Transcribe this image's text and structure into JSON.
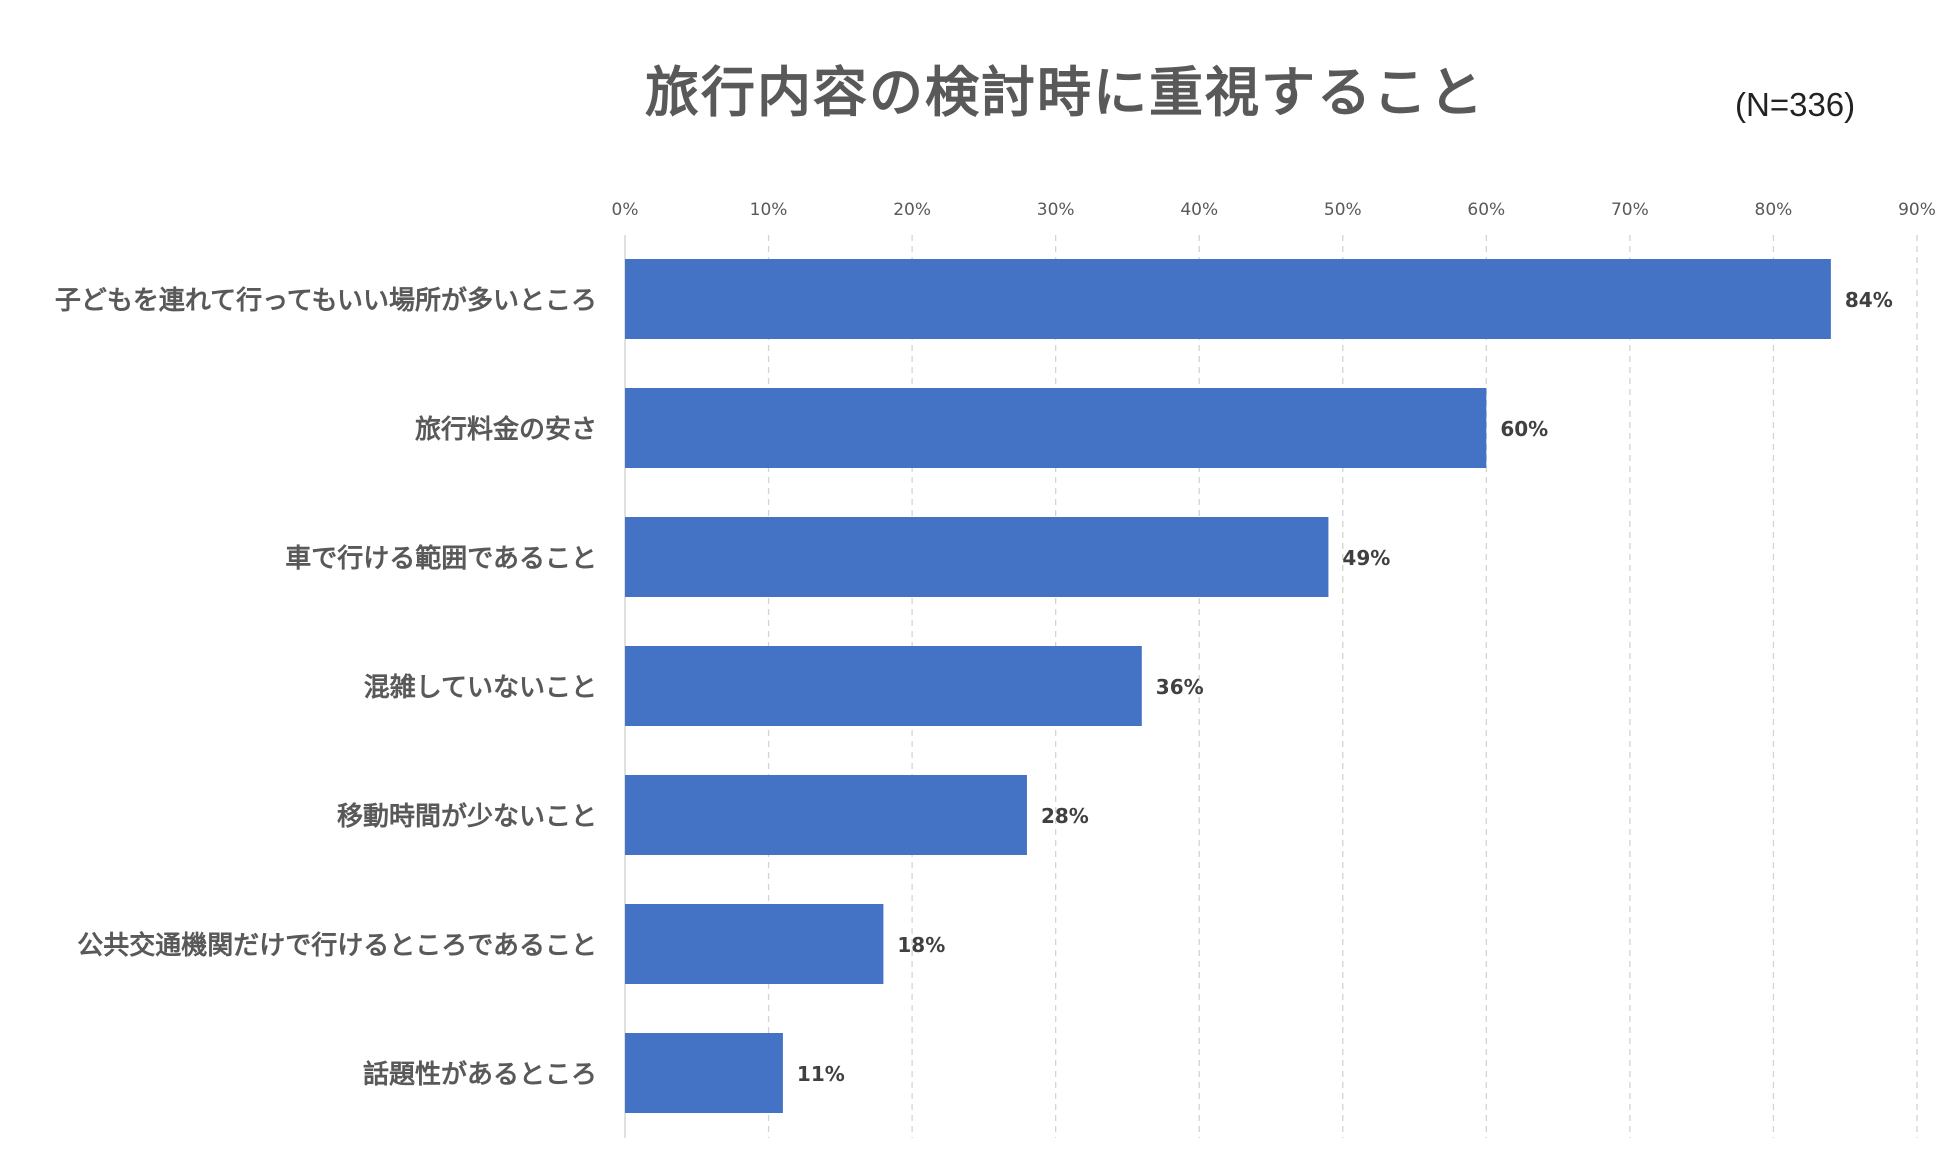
{
  "chart_data": {
    "type": "bar",
    "orientation": "horizontal",
    "title": "旅行内容の検討時に重視すること",
    "subtitle": "(N=336)",
    "categories": [
      "子どもを連れて行ってもいい場所が多いところ",
      "旅行料金の安さ",
      "車で行ける範囲であること",
      "混雑していないこと",
      "移動時間が少ないこと",
      "公共交通機関だけで行けるところであること",
      "話題性があるところ"
    ],
    "values": [
      84,
      60,
      49,
      36,
      28,
      18,
      11
    ],
    "data_labels": [
      "84%",
      "60%",
      "49%",
      "36%",
      "28%",
      "18%",
      "11%"
    ],
    "xlim": [
      0,
      90
    ],
    "x_ticks": [
      "0%",
      "10%",
      "20%",
      "30%",
      "40%",
      "50%",
      "60%",
      "70%",
      "80%",
      "90%"
    ],
    "x_tick_values": [
      0,
      10,
      20,
      30,
      40,
      50,
      60,
      70,
      80,
      90
    ],
    "x_axis_position": "top",
    "grid": "vertical dashed",
    "legend": "none",
    "bar_color": "#4472C4"
  }
}
